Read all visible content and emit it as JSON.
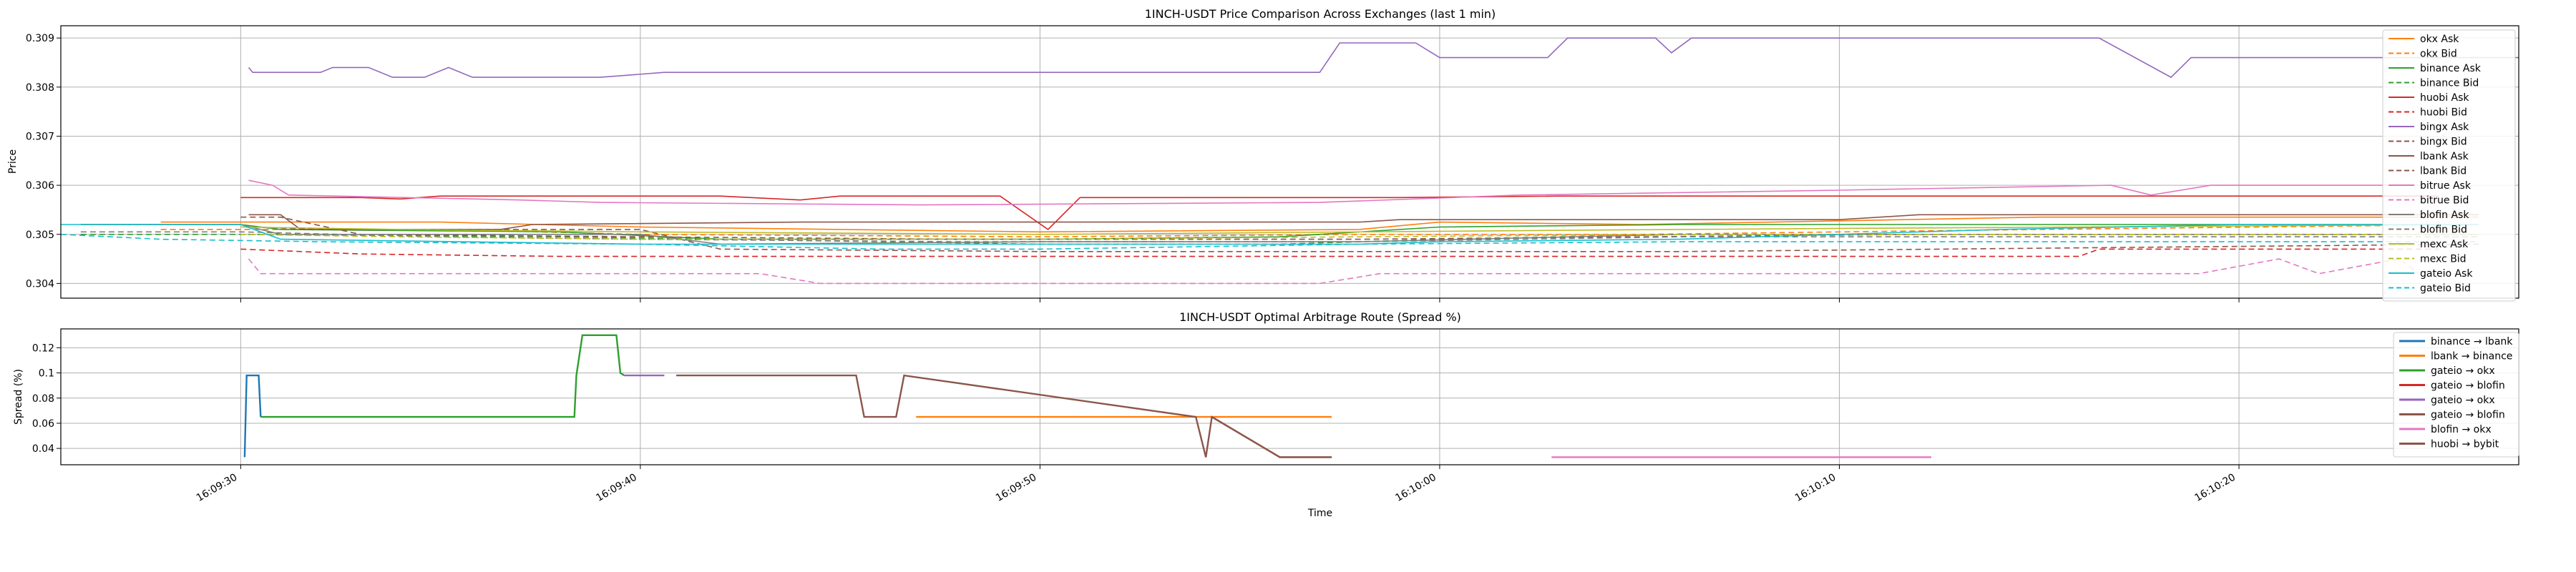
{
  "chart_data": [
    {
      "type": "line",
      "title": "1INCH-USDT Price Comparison Across Exchanges (last 1 min)",
      "xlabel": "",
      "ylabel": "Price",
      "x_ticks": [
        "16:09:30",
        "16:09:40",
        "16:09:50",
        "16:10:00",
        "16:10:10",
        "16:10:20"
      ],
      "y_ticks": [
        0.304,
        0.305,
        0.306,
        0.307,
        0.308,
        0.309
      ],
      "x_range_seconds": [
        565.5,
        627.0
      ],
      "ylim": [
        0.3037,
        0.30925
      ],
      "grid": true,
      "legend_position": "right",
      "series": [
        {
          "name": "okx Ask",
          "color": "#ff7f0e",
          "dash": "solid",
          "points": [
            [
              568,
              0.30525
            ],
            [
              575,
              0.30525
            ],
            [
              580,
              0.30515
            ],
            [
              590,
              0.30505
            ],
            [
              598,
              0.3051
            ],
            [
              600,
              0.30525
            ],
            [
              605,
              0.3052
            ],
            [
              615,
              0.30535
            ],
            [
              626,
              0.30535
            ]
          ]
        },
        {
          "name": "okx Bid",
          "color": "#ff7f0e",
          "dash": "dashed",
          "points": [
            [
              568,
              0.3051
            ],
            [
              575,
              0.3051
            ],
            [
              580,
              0.305
            ],
            [
              590,
              0.30495
            ],
            [
              598,
              0.305
            ],
            [
              605,
              0.305
            ],
            [
              615,
              0.3051
            ],
            [
              626,
              0.3052
            ]
          ]
        },
        {
          "name": "binance Ask",
          "color": "#2ca02c",
          "dash": "solid",
          "points": [
            [
              566,
              0.3052
            ],
            [
              570,
              0.3052
            ],
            [
              571,
              0.3051
            ],
            [
              578,
              0.30505
            ],
            [
              582,
              0.3049
            ],
            [
              590,
              0.3049
            ],
            [
              596,
              0.30495
            ],
            [
              600,
              0.30515
            ],
            [
              606,
              0.3052
            ],
            [
              626,
              0.3052
            ]
          ]
        },
        {
          "name": "binance Bid",
          "color": "#2ca02c",
          "dash": "dashed",
          "points": [
            [
              566,
              0.305
            ],
            [
              570,
              0.305
            ],
            [
              578,
              0.30495
            ],
            [
              590,
              0.3048
            ],
            [
              596,
              0.3048
            ],
            [
              600,
              0.3049
            ],
            [
              606,
              0.305
            ],
            [
              626,
              0.305
            ]
          ]
        },
        {
          "name": "huobi Ask",
          "color": "#d62728",
          "dash": "solid",
          "points": [
            [
              570,
              0.30575
            ],
            [
              573,
              0.30575
            ],
            [
              574,
              0.30572
            ],
            [
              575,
              0.30578
            ],
            [
              582,
              0.30578
            ],
            [
              584,
              0.3057
            ],
            [
              585,
              0.30578
            ],
            [
              589,
              0.30578
            ],
            [
              590.2,
              0.3051
            ],
            [
              591,
              0.30575
            ],
            [
              599,
              0.30575
            ],
            [
              603,
              0.30578
            ],
            [
              625,
              0.30578
            ]
          ]
        },
        {
          "name": "huobi Bid",
          "color": "#d62728",
          "dash": "dashed",
          "points": [
            [
              570,
              0.3047
            ],
            [
              573,
              0.3046
            ],
            [
              578,
              0.30455
            ],
            [
              590,
              0.30455
            ],
            [
              606,
              0.30455
            ],
            [
              616,
              0.30455
            ],
            [
              616.5,
              0.3047
            ],
            [
              625,
              0.3047
            ]
          ]
        },
        {
          "name": "bingx Ask",
          "color": "#9467bd",
          "dash": "solid",
          "points": [
            [
              570.2,
              0.3084
            ],
            [
              570.3,
              0.3083
            ],
            [
              572,
              0.3083
            ],
            [
              572.3,
              0.3084
            ],
            [
              573.2,
              0.3084
            ],
            [
              573.8,
              0.3082
            ],
            [
              574.6,
              0.3082
            ],
            [
              575.2,
              0.3084
            ],
            [
              575.8,
              0.3082
            ],
            [
              579,
              0.3082
            ],
            [
              580.6,
              0.3083
            ],
            [
              597,
              0.3083
            ],
            [
              597.5,
              0.3089
            ],
            [
              599.4,
              0.3089
            ],
            [
              600,
              0.3086
            ],
            [
              602.7,
              0.3086
            ],
            [
              603.2,
              0.309
            ],
            [
              605.4,
              0.309
            ],
            [
              605.8,
              0.3087
            ],
            [
              606.3,
              0.309
            ],
            [
              616.5,
              0.309
            ],
            [
              618.3,
              0.3082
            ],
            [
              618.8,
              0.3086
            ],
            [
              627,
              0.3086
            ]
          ]
        },
        {
          "name": "bingx Bid",
          "color": "#8c564b",
          "dash": "dashed",
          "points": [
            [
              570.3,
              0.30515
            ],
            [
              572,
              0.3051
            ],
            [
              580,
              0.3051
            ],
            [
              582,
              0.3047
            ],
            [
              590,
              0.30465
            ],
            [
              606,
              0.30465
            ],
            [
              626,
              0.3048
            ]
          ]
        },
        {
          "name": "lbank Ask",
          "color": "#8c564b",
          "dash": "solid",
          "points": [
            [
              570.2,
              0.3054
            ],
            [
              571,
              0.3054
            ],
            [
              571.5,
              0.3051
            ],
            [
              576.5,
              0.3051
            ],
            [
              577.3,
              0.3052
            ],
            [
              584,
              0.30525
            ],
            [
              588,
              0.30525
            ],
            [
              598,
              0.30525
            ],
            [
              599,
              0.3053
            ],
            [
              603,
              0.3053
            ],
            [
              610,
              0.3053
            ],
            [
              612,
              0.3054
            ],
            [
              620,
              0.3054
            ],
            [
              626,
              0.3054
            ]
          ]
        },
        {
          "name": "lbank Bid",
          "color": "#8c564b",
          "dash": "dashed",
          "points": [
            [
              570,
              0.30535
            ],
            [
              571,
              0.30535
            ],
            [
              573,
              0.305
            ],
            [
              580,
              0.30495
            ],
            [
              588,
              0.3049
            ],
            [
              598,
              0.3049
            ],
            [
              605,
              0.30495
            ],
            [
              612,
              0.305
            ],
            [
              626,
              0.305
            ]
          ]
        },
        {
          "name": "bitrue Ask",
          "color": "#e377c2",
          "dash": "solid",
          "points": [
            [
              570.2,
              0.3061
            ],
            [
              570.8,
              0.306
            ],
            [
              571.2,
              0.3058
            ],
            [
              577,
              0.3057
            ],
            [
              579,
              0.30565
            ],
            [
              587,
              0.3056
            ],
            [
              597,
              0.30565
            ],
            [
              602,
              0.3058
            ],
            [
              610,
              0.3059
            ],
            [
              616.8,
              0.306
            ],
            [
              617.8,
              0.3058
            ],
            [
              619.3,
              0.306
            ],
            [
              624.5,
              0.306
            ]
          ]
        },
        {
          "name": "bitrue Bid",
          "color": "#e377c2",
          "dash": "dashed",
          "points": [
            [
              570.2,
              0.3045
            ],
            [
              570.5,
              0.3042
            ],
            [
              583,
              0.3042
            ],
            [
              584.5,
              0.304
            ],
            [
              597,
              0.304
            ],
            [
              598.5,
              0.3042
            ],
            [
              619,
              0.3042
            ],
            [
              621,
              0.3045
            ],
            [
              622,
              0.3042
            ],
            [
              624,
              0.3045
            ],
            [
              624.5,
              0.3042
            ]
          ]
        },
        {
          "name": "blofin Ask",
          "color": "#7f7f7f",
          "dash": "solid",
          "points": [
            [
              566,
              0.3052
            ],
            [
              570,
              0.3052
            ],
            [
              571,
              0.305
            ],
            [
              580,
              0.305
            ],
            [
              582,
              0.3048
            ],
            [
              590,
              0.30485
            ],
            [
              598,
              0.30485
            ],
            [
              606,
              0.305
            ],
            [
              626,
              0.305
            ]
          ]
        },
        {
          "name": "blofin Bid",
          "color": "#7f7f7f",
          "dash": "dashed",
          "points": [
            [
              566,
              0.30505
            ],
            [
              570,
              0.30505
            ],
            [
              575,
              0.30495
            ],
            [
              580,
              0.3049
            ],
            [
              588,
              0.30485
            ],
            [
              598,
              0.30485
            ],
            [
              606,
              0.30495
            ],
            [
              626,
              0.30495
            ]
          ]
        },
        {
          "name": "mexc Ask",
          "color": "#bcbd22",
          "dash": "solid",
          "points": [
            [
              570,
              0.30515
            ],
            [
              574,
              0.3051
            ],
            [
              580,
              0.30505
            ],
            [
              590,
              0.305
            ],
            [
              598,
              0.30505
            ],
            [
              606,
              0.3051
            ],
            [
              616,
              0.30515
            ],
            [
              626,
              0.3052
            ]
          ]
        },
        {
          "name": "mexc Bid",
          "color": "#bcbd22",
          "dash": "dashed",
          "points": [
            [
              570,
              0.305
            ],
            [
              574,
              0.30495
            ],
            [
              580,
              0.3049
            ],
            [
              590,
              0.3049
            ],
            [
              598,
              0.30495
            ],
            [
              606,
              0.305
            ],
            [
              626,
              0.305
            ]
          ]
        },
        {
          "name": "gateio Ask",
          "color": "#17becf",
          "dash": "solid",
          "points": [
            [
              565.5,
              0.3052
            ],
            [
              570,
              0.3052
            ],
            [
              571,
              0.3049
            ],
            [
              580,
              0.3048
            ],
            [
              586,
              0.3048
            ],
            [
              590,
              0.3048
            ],
            [
              598,
              0.3048
            ],
            [
              600,
              0.30485
            ],
            [
              606,
              0.3049
            ],
            [
              614,
              0.3051
            ],
            [
              620,
              0.3052
            ],
            [
              626,
              0.3052
            ]
          ]
        },
        {
          "name": "gateio Bid",
          "color": "#17becf",
          "dash": "dashed",
          "points": [
            [
              565.5,
              0.305
            ],
            [
              568,
              0.3049
            ],
            [
              572,
              0.30485
            ],
            [
              580,
              0.3048
            ],
            [
              586,
              0.3047
            ],
            [
              590,
              0.3047
            ],
            [
              598,
              0.3048
            ],
            [
              606,
              0.30485
            ],
            [
              626,
              0.30485
            ]
          ]
        }
      ]
    },
    {
      "type": "line",
      "title": "1INCH-USDT Optimal Arbitrage Route (Spread %)",
      "xlabel": "Time",
      "ylabel": "Spread (%)",
      "x_ticks": [
        "16:09:30",
        "16:09:40",
        "16:09:50",
        "16:10:00",
        "16:10:10",
        "16:10:20"
      ],
      "y_ticks": [
        0.04,
        0.06,
        0.08,
        0.1,
        0.12
      ],
      "x_range_seconds": [
        565.5,
        627.0
      ],
      "ylim": [
        0.027,
        0.135
      ],
      "grid": true,
      "legend_position": "upper right",
      "series": [
        {
          "name": "binance → lbank",
          "color": "#1f77b4",
          "points": [
            [
              570.1,
              0.033
            ],
            [
              570.15,
              0.098
            ],
            [
              570.45,
              0.098
            ],
            [
              570.5,
              0.065
            ]
          ]
        },
        {
          "name": "lbank → binance",
          "color": "#ff7f0e",
          "points": [
            [
              586.9,
              0.065
            ],
            [
              597.3,
              0.065
            ]
          ]
        },
        {
          "name": "gateio → okx",
          "color": "#2ca02c",
          "points": [
            [
              570.5,
              0.065
            ],
            [
              578.35,
              0.065
            ],
            [
              578.4,
              0.098
            ],
            [
              578.55,
              0.13
            ],
            [
              579.4,
              0.13
            ],
            [
              579.5,
              0.1
            ],
            [
              579.6,
              0.098
            ]
          ]
        },
        {
          "name": "gateio → blofin",
          "color": "#d62728",
          "points": []
        },
        {
          "name": "gateio → okx",
          "color": "#9467bd",
          "points": [
            [
              579.6,
              0.098
            ],
            [
              580.6,
              0.098
            ]
          ]
        },
        {
          "name": "gateio → blofin",
          "color": "#8c564b",
          "points": [
            [
              580.9,
              0.098
            ],
            [
              585.4,
              0.098
            ],
            [
              585.6,
              0.065
            ],
            [
              586.4,
              0.065
            ],
            [
              586.6,
              0.098
            ],
            [
              593.9,
              0.065
            ],
            [
              594.15,
              0.033
            ],
            [
              594.3,
              0.065
            ],
            [
              596,
              0.033
            ],
            [
              597.3,
              0.033
            ]
          ]
        },
        {
          "name": "blofin → okx",
          "color": "#e377c2",
          "points": [
            [
              602.8,
              0.033
            ],
            [
              612.3,
              0.033
            ]
          ]
        },
        {
          "name": "huobi → bybit",
          "color": "#8c564b",
          "points": [
            [
              594.3,
              0.065
            ],
            [
              596,
              0.033
            ],
            [
              597.3,
              0.033
            ]
          ]
        }
      ]
    }
  ]
}
